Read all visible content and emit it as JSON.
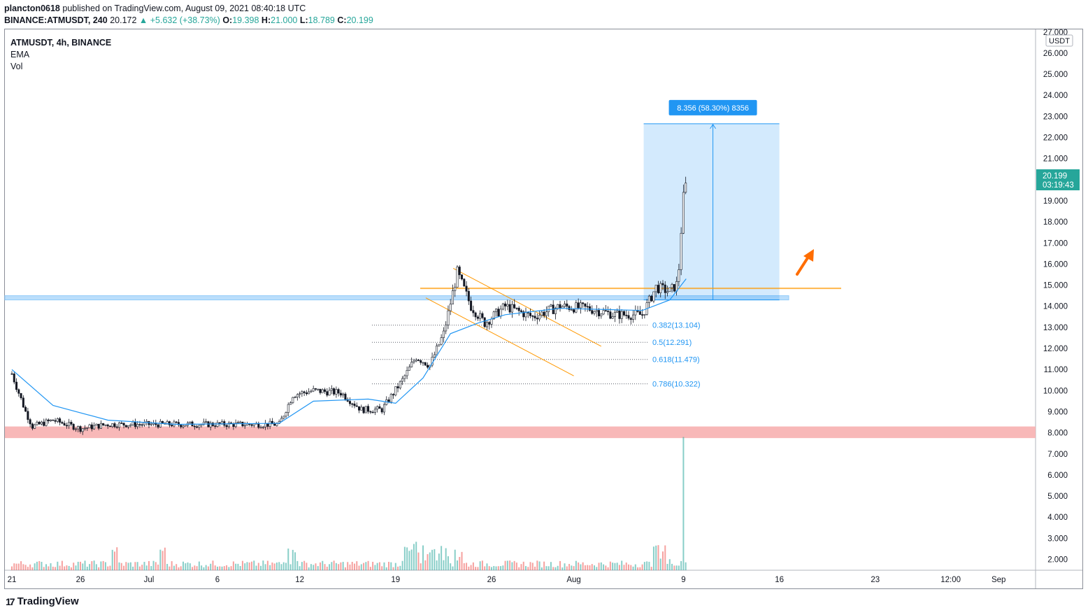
{
  "header": {
    "author": "plancton0618",
    "published_text": "published on TradingView.com, August 09, 2021 08:40:18 UTC",
    "symbol": "BINANCE:ATMUSDT, 240",
    "last": "20.172",
    "change": "▲ +5.632 (+38.73%)",
    "o_label": "O:",
    "o": "19.398",
    "h_label": "H:",
    "h": "21.000",
    "l_label": "L:",
    "l": "18.789",
    "c_label": "C:",
    "c": "20.199"
  },
  "legend": {
    "title": "ATMUSDT, 4h, BINANCE",
    "ind1": "EMA",
    "ind2": "Vol"
  },
  "price_axis": {
    "currency": "USDT",
    "last_price": "20.199",
    "countdown": "03:19:43"
  },
  "measure_label": "8.356 (58.30%) 8356",
  "footer": {
    "brand": "TradingView"
  },
  "colors": {
    "up": "#26a69a",
    "down": "#ef5350",
    "ema": "#2196f3",
    "resistance": "#bbdefb",
    "support": "#f8b4b4",
    "channel": "#ff9800",
    "arrow": "#ff6d00"
  },
  "chart_data": {
    "type": "candlestick",
    "title": "ATMUSDT, 4h, BINANCE",
    "y_ticks": [
      2,
      3,
      4,
      5,
      6,
      7,
      8,
      9,
      10,
      11,
      12,
      13,
      14,
      15,
      16,
      17,
      18,
      19,
      20,
      21,
      22,
      23,
      24,
      25,
      26,
      27
    ],
    "y_tick_labels": [
      "2.000",
      "3.000",
      "4.000",
      "5.000",
      "6.000",
      "7.000",
      "8.000",
      "9.000",
      "10.000",
      "11.000",
      "12.000",
      "13.000",
      "14.000",
      "15.000",
      "16.000",
      "17.000",
      "18.000",
      "19.000",
      "20.000",
      "21.000",
      "22.000",
      "23.000",
      "24.000",
      "25.000",
      "26.000",
      "27.000"
    ],
    "ylim": [
      1.5,
      27.1
    ],
    "x_ticks": [
      {
        "label": "21",
        "day": 0
      },
      {
        "label": "26",
        "day": 5
      },
      {
        "label": "Jul",
        "day": 10
      },
      {
        "label": "6",
        "day": 15
      },
      {
        "label": "12",
        "day": 21
      },
      {
        "label": "19",
        "day": 28
      },
      {
        "label": "26",
        "day": 35
      },
      {
        "label": "Aug",
        "day": 41
      },
      {
        "label": "9",
        "day": 49
      },
      {
        "label": "16",
        "day": 56
      },
      {
        "label": "23",
        "day": 63
      },
      {
        "label": "12:00",
        "day": 68.5
      },
      {
        "label": "Sep",
        "day": 72
      }
    ],
    "price_path": [
      {
        "day": 0,
        "close": 10.8
      },
      {
        "day": 1,
        "close": 9.0
      },
      {
        "day": 1.5,
        "close": 8.3
      },
      {
        "day": 3,
        "close": 8.6
      },
      {
        "day": 5,
        "close": 8.2
      },
      {
        "day": 7,
        "close": 8.4
      },
      {
        "day": 10,
        "close": 8.4
      },
      {
        "day": 13,
        "close": 8.4
      },
      {
        "day": 16,
        "close": 8.4
      },
      {
        "day": 19.5,
        "close": 8.4
      },
      {
        "day": 20.5,
        "close": 9.8
      },
      {
        "day": 22,
        "close": 10.0
      },
      {
        "day": 24,
        "close": 9.9
      },
      {
        "day": 25.5,
        "close": 9.1
      },
      {
        "day": 27,
        "close": 9.1
      },
      {
        "day": 28.5,
        "close": 10.5
      },
      {
        "day": 29.5,
        "close": 11.6
      },
      {
        "day": 30.5,
        "close": 11.2
      },
      {
        "day": 31.5,
        "close": 12.7
      },
      {
        "day": 32.5,
        "close": 15.6
      },
      {
        "day": 33.5,
        "close": 14.0
      },
      {
        "day": 34.5,
        "close": 13.2
      },
      {
        "day": 36,
        "close": 14.0
      },
      {
        "day": 38,
        "close": 13.5
      },
      {
        "day": 40,
        "close": 14.0
      },
      {
        "day": 42,
        "close": 13.9
      },
      {
        "day": 44,
        "close": 13.6
      },
      {
        "day": 46,
        "close": 13.6
      },
      {
        "day": 47,
        "close": 14.9
      },
      {
        "day": 48,
        "close": 14.7
      },
      {
        "day": 48.6,
        "close": 15.1
      },
      {
        "day": 49,
        "close": 19.4
      },
      {
        "day": 49.3,
        "close": 20.199
      }
    ],
    "ema_path": [
      {
        "day": 0,
        "value": 11.0
      },
      {
        "day": 3,
        "value": 9.3
      },
      {
        "day": 7,
        "value": 8.6
      },
      {
        "day": 12,
        "value": 8.4
      },
      {
        "day": 19.5,
        "value": 8.45
      },
      {
        "day": 22,
        "value": 9.5
      },
      {
        "day": 26,
        "value": 9.6
      },
      {
        "day": 28,
        "value": 9.4
      },
      {
        "day": 30,
        "value": 10.6
      },
      {
        "day": 32,
        "value": 12.7
      },
      {
        "day": 34,
        "value": 13.2
      },
      {
        "day": 36,
        "value": 13.6
      },
      {
        "day": 40,
        "value": 13.9
      },
      {
        "day": 46,
        "value": 13.8
      },
      {
        "day": 48,
        "value": 14.3
      },
      {
        "day": 49.2,
        "value": 15.3
      }
    ],
    "volume_peak": 7.8,
    "resistance_zone": [
      14.3,
      14.5
    ],
    "support_zone": [
      7.75,
      8.3
    ],
    "horizontal_level": 14.85,
    "fib_levels": [
      {
        "label": "0.382(13.104)",
        "value": 13.104
      },
      {
        "label": "0.5(12.291)",
        "value": 12.291
      },
      {
        "label": "0.618(11.479)",
        "value": 11.479
      },
      {
        "label": "0.786(10.322)",
        "value": 10.322
      }
    ],
    "channel_upper": [
      {
        "day": 32.2,
        "value": 15.8
      },
      {
        "day": 43,
        "value": 12.1
      }
    ],
    "channel_lower": [
      {
        "day": 30.2,
        "value": 14.4
      },
      {
        "day": 41,
        "value": 10.7
      }
    ],
    "measure": {
      "from_day": 46.1,
      "to_day": 56,
      "low": 14.3,
      "high": 22.65
    }
  }
}
